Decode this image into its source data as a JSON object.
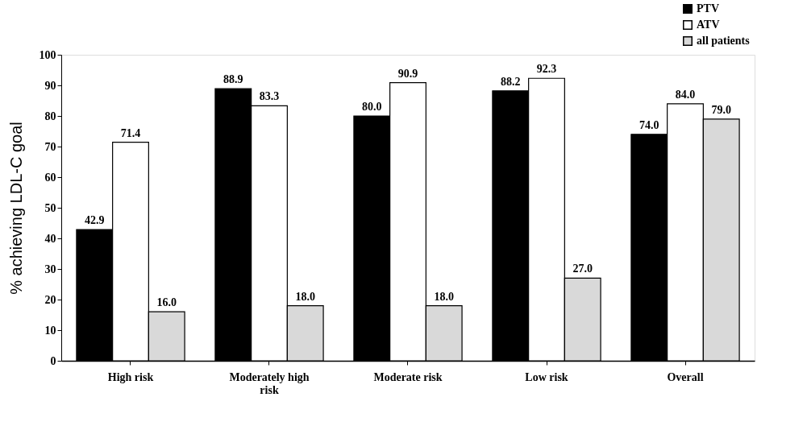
{
  "chart_data": {
    "type": "bar",
    "ylabel": "% achieving LDL-C goal",
    "categories": [
      "High risk",
      "Moderately high risk",
      "Moderate risk",
      "Low risk",
      "Overall"
    ],
    "series": [
      {
        "name": "PTV",
        "color": "#000000",
        "values": [
          42.9,
          88.9,
          80,
          88.2,
          74
        ],
        "value_labels": [
          "42.9",
          "88.9",
          "80.0",
          "88.2",
          "74.0"
        ]
      },
      {
        "name": "ATV",
        "color": "#ffffff",
        "values": [
          71.4,
          83.3,
          90.9,
          92.3,
          84
        ],
        "value_labels": [
          "71.4",
          "83.3",
          "90.9",
          "92.3",
          "84.0"
        ]
      },
      {
        "name": "all patients",
        "color": "#d9d9d9",
        "values": [
          16,
          18,
          18,
          27,
          79
        ],
        "value_labels": [
          "16.0",
          "18.0",
          "18.0",
          "27.0",
          "79.0"
        ]
      }
    ],
    "ylim": [
      0,
      100
    ],
    "yticks": [
      0,
      10,
      20,
      30,
      40,
      50,
      60,
      70,
      80,
      90,
      100
    ],
    "legend": "top right",
    "grid": false
  }
}
